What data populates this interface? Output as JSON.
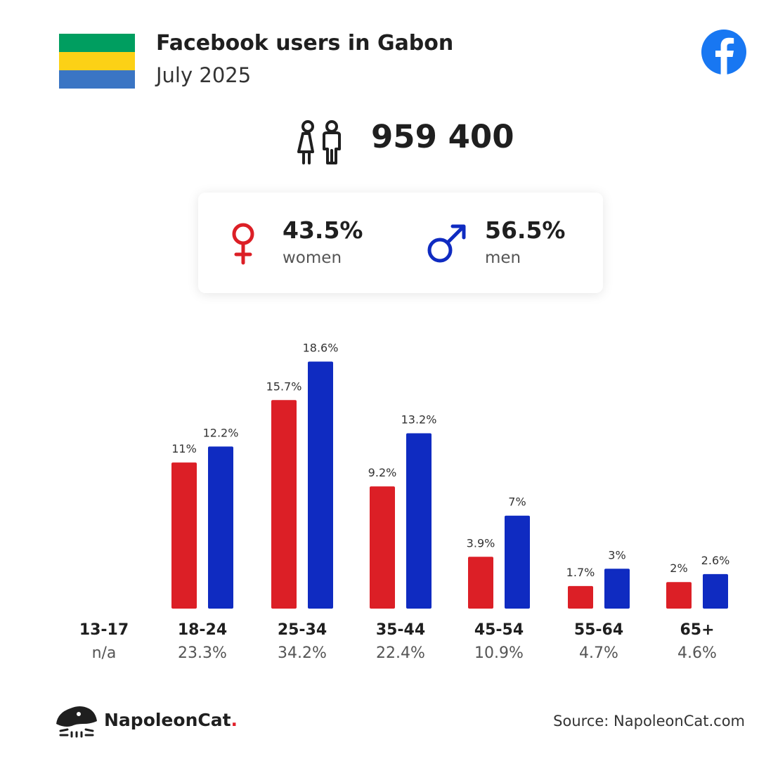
{
  "header": {
    "title": "Facebook users in Gabon",
    "subtitle": "July 2025",
    "flag_colors": [
      "#009e60",
      "#fcd116",
      "#3a75c4"
    ],
    "brand_icon": "facebook-icon"
  },
  "total": {
    "value": "959 400",
    "icon": "users-icon"
  },
  "gender": {
    "women": {
      "pct": "43.5%",
      "label": "women",
      "icon": "female-symbol-icon",
      "color": "#dc1f26"
    },
    "men": {
      "pct": "56.5%",
      "label": "men",
      "icon": "male-symbol-icon",
      "color": "#0f2bc1"
    }
  },
  "chart_data": {
    "type": "bar",
    "categories": [
      "13-17",
      "18-24",
      "25-34",
      "35-44",
      "45-54",
      "55-64",
      "65+"
    ],
    "group_totals": [
      "n/a",
      "23.3%",
      "34.2%",
      "22.4%",
      "10.9%",
      "4.7%",
      "4.6%"
    ],
    "series": [
      {
        "color": "#dc1f26",
        "values": [
          null,
          11,
          15.7,
          9.2,
          3.9,
          1.7,
          2
        ],
        "labels": [
          "",
          "11%",
          "15.7%",
          "9.2%",
          "3.9%",
          "1.7%",
          "2%"
        ]
      },
      {
        "color": "#0f2bc1",
        "values": [
          null,
          12.2,
          18.6,
          13.2,
          7,
          3,
          2.6
        ],
        "labels": [
          "",
          "12.2%",
          "18.6%",
          "13.2%",
          "7%",
          "3%",
          "2.6%"
        ]
      }
    ]
  },
  "footer": {
    "brand_name": "NapoleonCat",
    "brand_dot": ".",
    "source": "Source: NapoleonCat.com"
  }
}
